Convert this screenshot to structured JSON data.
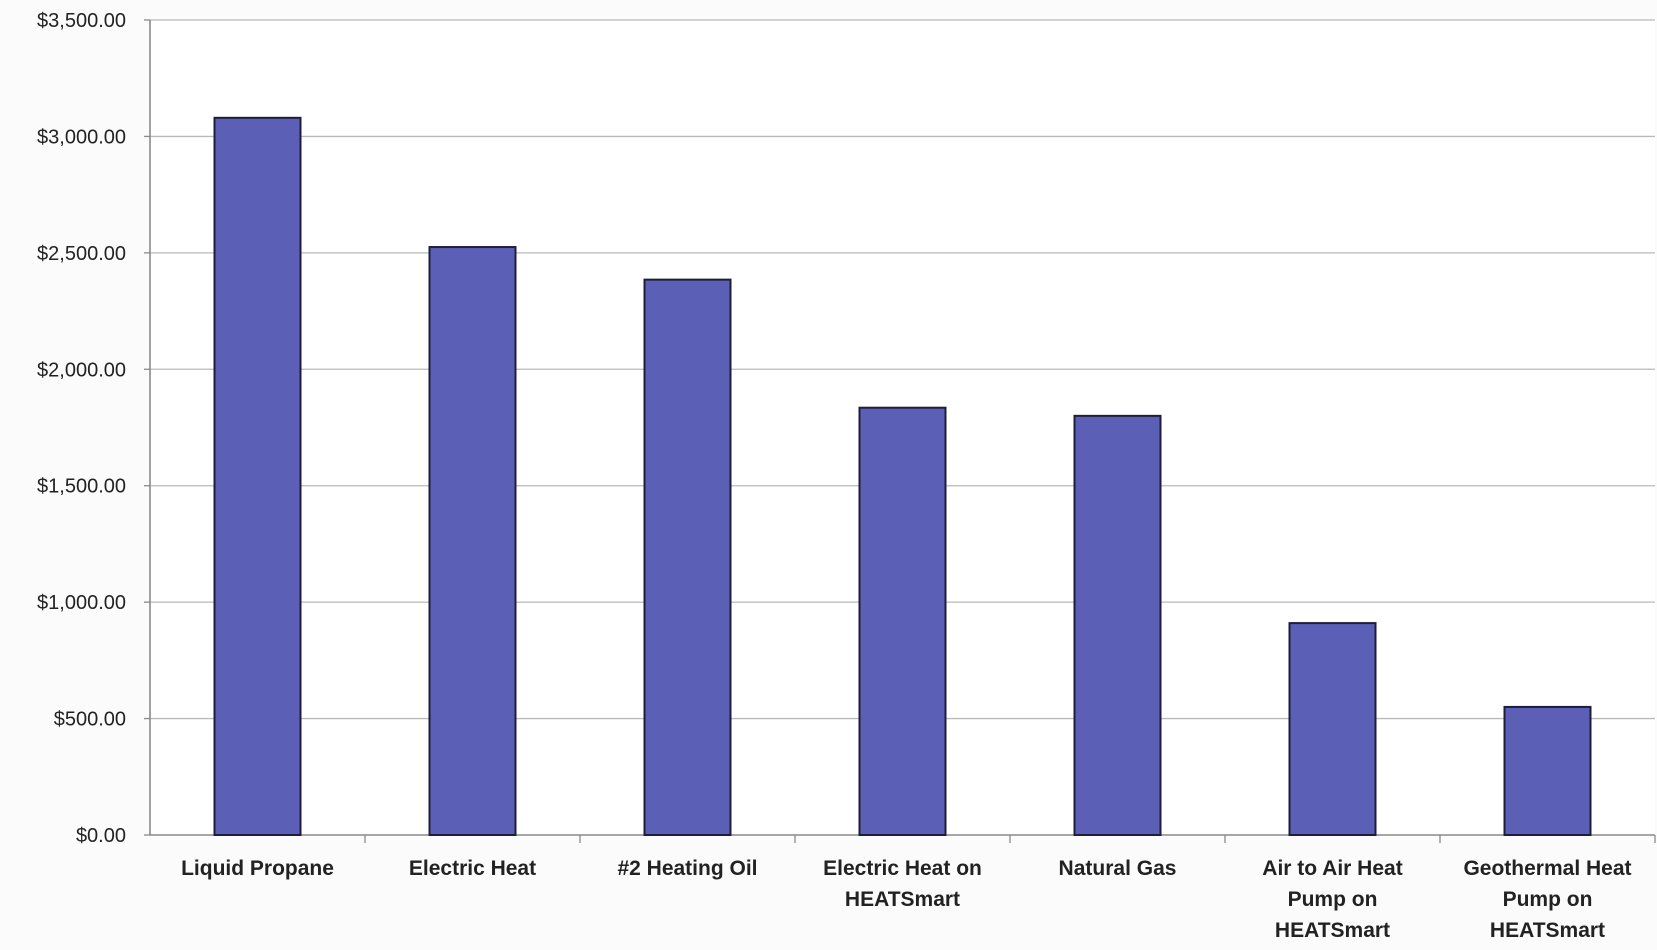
{
  "chart_data": {
    "type": "bar",
    "title": "",
    "xlabel": "",
    "ylabel": "",
    "categories": [
      "Liquid Propane",
      "Electric Heat",
      "#2 Heating Oil",
      "Electric Heat on HEATSmart",
      "Natural Gas",
      "Air to Air Heat Pump on HEATSmart",
      "Geothermal Heat Pump on HEATSmart"
    ],
    "category_lines": [
      [
        "Liquid Propane"
      ],
      [
        "Electric Heat"
      ],
      [
        "#2 Heating Oil"
      ],
      [
        "Electric Heat on",
        "HEATSmart"
      ],
      [
        "Natural Gas"
      ],
      [
        "Air to Air Heat",
        "Pump on",
        "HEATSmart"
      ],
      [
        "Geothermal Heat",
        "Pump on",
        "HEATSmart"
      ]
    ],
    "values": [
      3080,
      2525,
      2385,
      1835,
      1800,
      910,
      550
    ],
    "ylim": [
      0,
      3500
    ],
    "yticks": [
      0,
      500,
      1000,
      1500,
      2000,
      2500,
      3000,
      3500
    ],
    "ytick_labels": [
      "$0.00",
      "$500.00",
      "$1,000.00",
      "$1,500.00",
      "$2,000.00",
      "$2,500.00",
      "$3,000.00",
      "$3,500.00"
    ],
    "grid": true,
    "legend": "none",
    "colors": {
      "bar": "#5b5fb6",
      "bar_edge": "#1e1e3a",
      "grid": "#b9b9b9",
      "axis": "#8a8a8a"
    }
  }
}
